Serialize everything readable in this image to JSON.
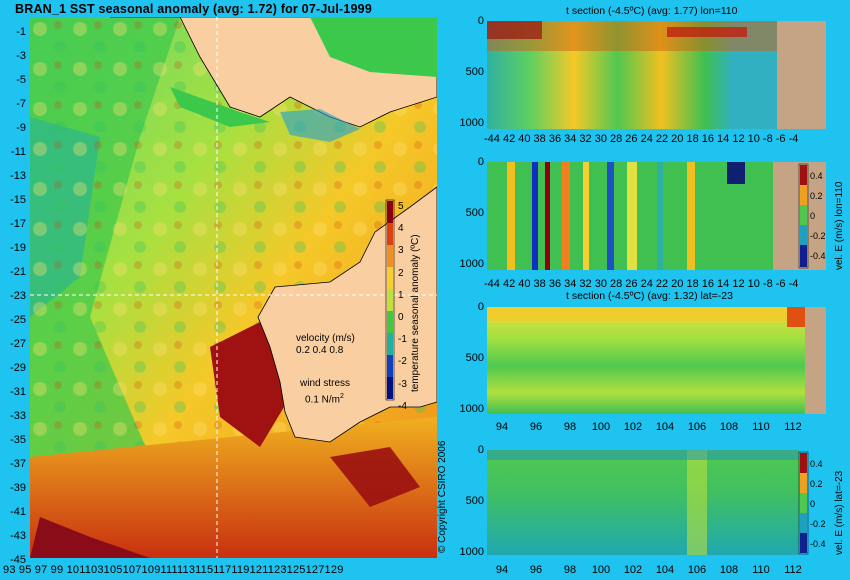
{
  "map": {
    "title": "BRAN_1  SST seasonal anomaly  (avg: 1.72)  for 07-Jul-1999",
    "lat_labels": [
      "-1",
      "-3",
      "-5",
      "-7",
      "-9",
      "-11",
      "-13",
      "-15",
      "-17",
      "-19",
      "-21",
      "-23",
      "-25",
      "-27",
      "-29",
      "-31",
      "-33",
      "-35",
      "-37",
      "-39",
      "-41",
      "-43",
      "-45"
    ],
    "lon_labels": [
      "93",
      "95",
      "97",
      "99",
      "101",
      "103",
      "105",
      "107",
      "109",
      "111",
      "113",
      "115",
      "117",
      "119",
      "121",
      "123",
      "125",
      "127",
      "129"
    ],
    "lon_axis_text": "93 95 97 99 101103105107109111113115117119121123125127129",
    "colorbar_ticks": [
      "5",
      "4",
      "3",
      "2",
      "1",
      "0",
      "-1",
      "-2",
      "-3",
      "-4"
    ],
    "colorbar_label": "temperature seasonal anomaly (ºC)",
    "velocity_label": "velocity (m/s)",
    "velocity_scale": "0.2 0.4 0.8",
    "wind_label": "wind stress",
    "wind_scale": "0.1 N/m",
    "wind_scale_sup": "2",
    "copyright": "© Copyright CSIRO 2006",
    "colors": {
      "land": "#f9cfa2",
      "ocean_warm": "#f0c020",
      "ocean_cool": "#2ec430",
      "hot": "#a01010",
      "arrows": "#d000d0",
      "section_land": "#c4a484"
    }
  },
  "panels": [
    {
      "title": "t section (-4.5ºC)  (avg: 1.77) lon=110",
      "y_ticks": [
        "0",
        "500",
        "1000"
      ],
      "x_axis_text": "-44 42 40 38 36 34 32 30 28 26 24 22 20 18 16 14 12 10 -8  -6  -4",
      "side_label": ""
    },
    {
      "title": "",
      "y_ticks": [
        "0",
        "500",
        "1000"
      ],
      "x_axis_text": "-44 42 40 38 36 34 32 30 28 26 24 22 20 18 16 14 12 10 -8  -6  -4",
      "side_label": "vel. E (m/s) lon=110",
      "cb_ticks": [
        "0.4",
        "0.2",
        "0",
        "-0.2",
        "-0.4"
      ]
    },
    {
      "title": "t section (-4.5ºC)  (avg: 1.32) lat=-23",
      "y_ticks": [
        "0",
        "500",
        "1000"
      ],
      "x_labels": [
        "94",
        "96",
        "98",
        "100",
        "102",
        "104",
        "106",
        "108",
        "110",
        "112"
      ],
      "side_label": ""
    },
    {
      "title": "",
      "y_ticks": [
        "0",
        "500",
        "1000"
      ],
      "x_labels": [
        "94",
        "96",
        "98",
        "100",
        "102",
        "104",
        "106",
        "108",
        "110",
        "112"
      ],
      "side_label": "vel. E (m/s) lat=-23",
      "cb_ticks": [
        "0.4",
        "0.2",
        "0",
        "-0.2",
        "-0.4"
      ]
    }
  ]
}
